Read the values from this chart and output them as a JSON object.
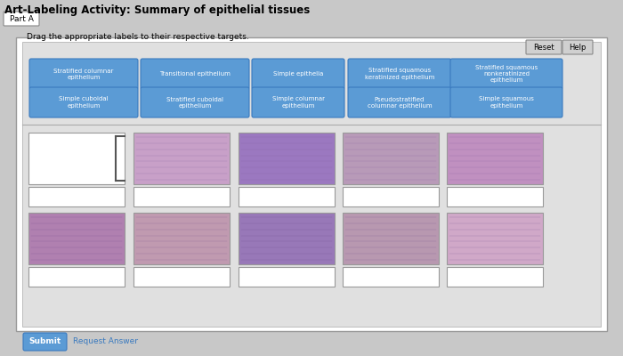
{
  "title": "Art-Labeling Activity: Summary of epithelial tissues",
  "subtitle": "Drag the appropriate labels to their respective targets.",
  "part_label": "Part A",
  "bg_color": "#c8c8c8",
  "outer_bg": "#d0d0d0",
  "inner_bg": "#e0e0e0",
  "label_buttons_row1": [
    "Stratified columnar\nepithelium",
    "Transitional epithelium",
    "Simple epithelia",
    "Stratified squamous\nkeratinized epithelium",
    "Stratified squamous\nnonkeratinized\nepithelium"
  ],
  "label_buttons_row2": [
    "Simple cuboidal\nepithelium",
    "Stratified cuboidal\nepithelium",
    "Simple columnar\nepithelium",
    "Pseudostratified\ncolumnar epithelium",
    "Simple squamous\nepithelium"
  ],
  "button_color": "#5b9bd5",
  "button_text_color": "white",
  "reset_help_color": "#d0d0d0",
  "image_colors_row1": [
    null,
    "#c8a0c8",
    "#9b78c0",
    "#b89ab8",
    "#c090c0"
  ],
  "image_colors_row2": [
    "#b080b0",
    "#c09ab0",
    "#9878b8",
    "#b898b0",
    "#d0a8c8"
  ],
  "texture_color_r1": "#8060a0",
  "texture_color_r2": "#604080",
  "submit_color": "#5b9bd5"
}
